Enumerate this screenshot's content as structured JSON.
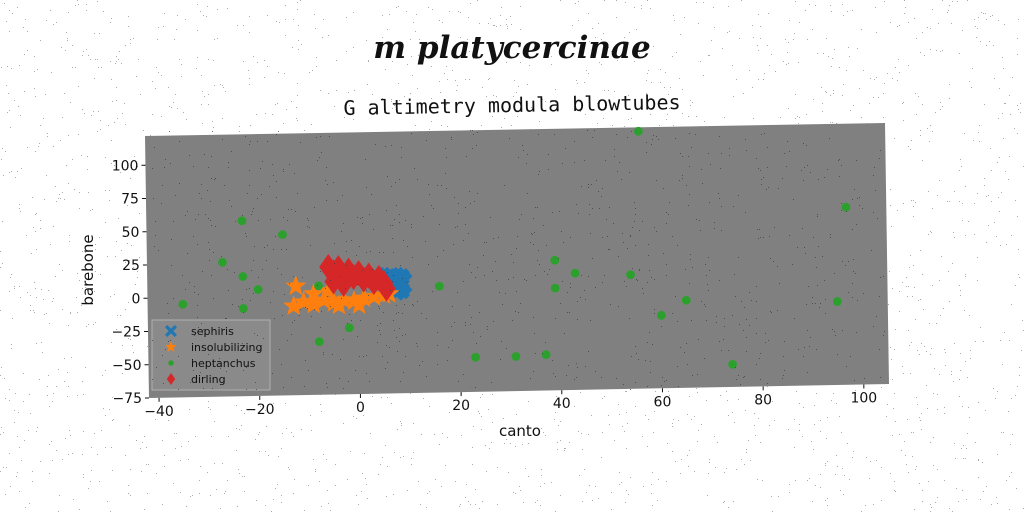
{
  "suptitle": "m platycercinae",
  "chart_data": {
    "type": "scatter",
    "title": "G altimetry modula blowtubes",
    "xlabel": "canto",
    "ylabel": "barebone",
    "xlim": [
      -42,
      105
    ],
    "ylim": [
      -75,
      122
    ],
    "xticks": [
      -40,
      -20,
      0,
      20,
      40,
      60,
      80,
      100
    ],
    "yticks": [
      -75,
      -50,
      -25,
      0,
      25,
      50,
      75,
      100
    ],
    "grid": false,
    "legend_position": "lower-left",
    "background_color": "#808080",
    "series": [
      {
        "name": "sephiris",
        "marker": "x-filled",
        "color": "#1f77b4",
        "points": [
          [
            6,
            5
          ],
          [
            6.5,
            9
          ],
          [
            7,
            12
          ],
          [
            7.5,
            6
          ],
          [
            8,
            11
          ],
          [
            8,
            4
          ],
          [
            8.5,
            8
          ],
          [
            7,
            3
          ],
          [
            6,
            12
          ]
        ]
      },
      {
        "name": "insolubilizing",
        "marker": "star",
        "color": "#ff7f0e",
        "points": [
          [
            -12.5,
            7
          ],
          [
            -13,
            -8
          ],
          [
            -11,
            -5
          ],
          [
            -9,
            -7
          ],
          [
            -7,
            -4
          ],
          [
            -5,
            -6
          ],
          [
            -3,
            -4
          ],
          [
            -1,
            -5
          ],
          [
            1,
            -3
          ],
          [
            3,
            -2
          ],
          [
            5,
            -1
          ],
          [
            -6,
            3
          ],
          [
            -9,
            1
          ],
          [
            -4,
            -8
          ],
          [
            0,
            -8
          ],
          [
            6,
            0
          ]
        ]
      },
      {
        "name": "heptanchus",
        "marker": "circle",
        "color": "#2ca02c",
        "points": [
          [
            -35,
            -5
          ],
          [
            -27,
            26
          ],
          [
            -23,
            57
          ],
          [
            -23,
            15
          ],
          [
            -23,
            -9
          ],
          [
            -20,
            5
          ],
          [
            -15,
            46
          ],
          [
            -8,
            7
          ],
          [
            -8,
            -35
          ],
          [
            -2,
            -25
          ],
          [
            16,
            5
          ],
          [
            23,
            -49
          ],
          [
            31,
            -49
          ],
          [
            37,
            -48
          ],
          [
            39,
            23
          ],
          [
            39,
            2
          ],
          [
            43,
            13
          ],
          [
            54,
            11
          ],
          [
            56,
            119
          ],
          [
            60,
            -20
          ],
          [
            65,
            -9
          ],
          [
            74,
            -58
          ],
          [
            95,
            -12
          ],
          [
            97,
            59
          ]
        ]
      },
      {
        "name": "dirling",
        "marker": "diamond",
        "color": "#d62728",
        "points": [
          [
            -6,
            21
          ],
          [
            -5,
            17
          ],
          [
            -4,
            20
          ],
          [
            -3,
            14
          ],
          [
            -2,
            18
          ],
          [
            -1,
            13
          ],
          [
            0,
            16
          ],
          [
            1,
            11
          ],
          [
            2,
            14
          ],
          [
            3,
            9
          ],
          [
            4,
            12
          ],
          [
            5,
            8
          ],
          [
            5.5,
            4
          ],
          [
            -5,
            10
          ],
          [
            -3,
            8
          ]
        ]
      }
    ]
  }
}
